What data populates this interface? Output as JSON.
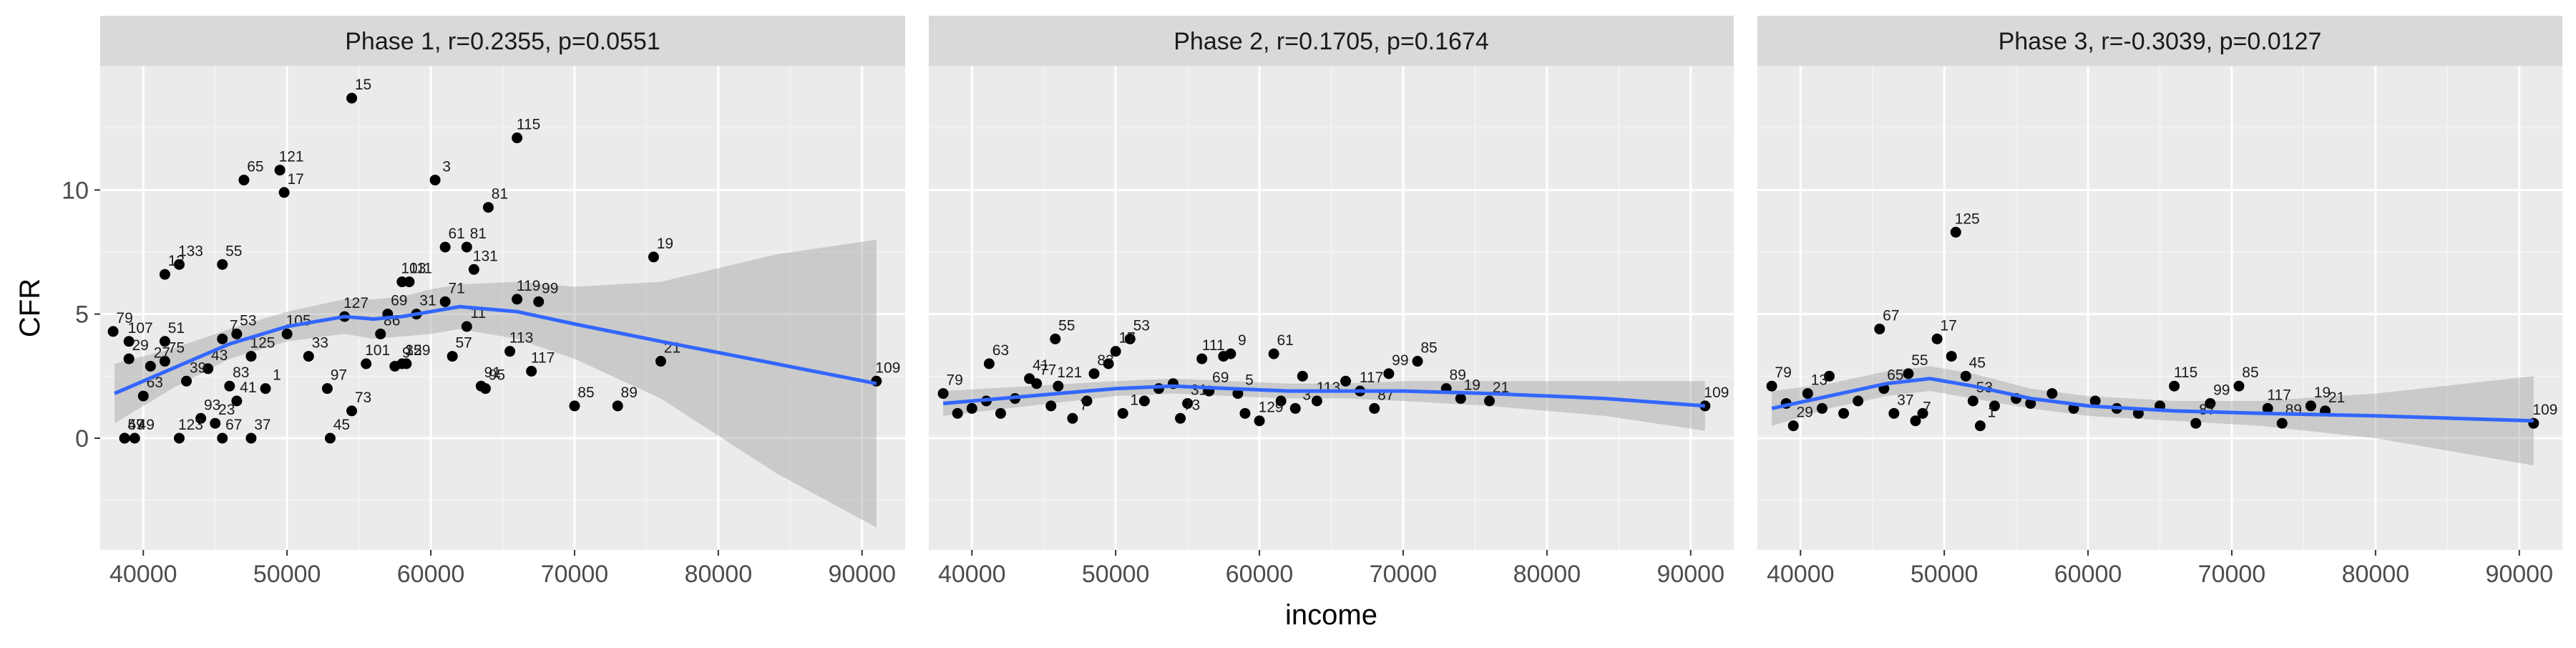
{
  "chart_data": {
    "type": "scatter",
    "xlabel": "income",
    "ylabel": "CFR",
    "xlim": [
      37000,
      93000
    ],
    "ylim": [
      -4.5,
      15
    ],
    "x_ticks": [
      40000,
      50000,
      60000,
      70000,
      80000,
      90000
    ],
    "x_tick_labels": [
      "40000",
      "50000",
      "60000",
      "70000",
      "80000",
      "90000"
    ],
    "y_ticks": [
      0,
      5,
      10
    ],
    "y_tick_labels": [
      "0",
      "5",
      "10"
    ],
    "grid": true,
    "smoother": "loess with confidence band",
    "colors": {
      "panel_bg": "#ebebeb",
      "strip_bg": "#d9d9d9",
      "grid_major": "#ffffff",
      "grid_minor": "#f5f5f5",
      "point": "#000000",
      "smooth_line": "#3366ff",
      "ribbon": "#999999"
    },
    "panels": [
      {
        "title": "Phase 1, r=0.2355, p=0.0551",
        "points": [
          {
            "x": 37900,
            "y": 4.3,
            "label": "79"
          },
          {
            "x": 39000,
            "y": 3.9,
            "label": "107"
          },
          {
            "x": 39000,
            "y": 3.2,
            "label": "29"
          },
          {
            "x": 41500,
            "y": 3.9,
            "label": "51"
          },
          {
            "x": 40500,
            "y": 2.9,
            "label": "27"
          },
          {
            "x": 41500,
            "y": 3.1,
            "label": "75"
          },
          {
            "x": 45500,
            "y": 4.0,
            "label": "7"
          },
          {
            "x": 46500,
            "y": 4.2,
            "label": "53"
          },
          {
            "x": 44500,
            "y": 2.8,
            "label": "43"
          },
          {
            "x": 47500,
            "y": 3.3,
            "label": "125"
          },
          {
            "x": 50000,
            "y": 4.2,
            "label": "105"
          },
          {
            "x": 51500,
            "y": 3.3,
            "label": "33"
          },
          {
            "x": 46000,
            "y": 2.1,
            "label": "83"
          },
          {
            "x": 48500,
            "y": 2.0,
            "label": "1"
          },
          {
            "x": 40000,
            "y": 1.7,
            "label": "63"
          },
          {
            "x": 43000,
            "y": 2.3,
            "label": "39"
          },
          {
            "x": 44000,
            "y": 0.8,
            "label": "93"
          },
          {
            "x": 45000,
            "y": 0.6,
            "label": "23"
          },
          {
            "x": 46500,
            "y": 1.5,
            "label": "41"
          },
          {
            "x": 38700,
            "y": 0.0,
            "label": "59"
          },
          {
            "x": 38700,
            "y": 0.0,
            "label": "47"
          },
          {
            "x": 39400,
            "y": 0.0,
            "label": "49"
          },
          {
            "x": 42500,
            "y": 0.0,
            "label": "123"
          },
          {
            "x": 45500,
            "y": 0.0,
            "label": "67"
          },
          {
            "x": 47500,
            "y": 0.0,
            "label": "37"
          },
          {
            "x": 53000,
            "y": 0.0,
            "label": "45"
          },
          {
            "x": 52800,
            "y": 2.0,
            "label": "97"
          },
          {
            "x": 54500,
            "y": 1.1,
            "label": "73"
          },
          {
            "x": 55500,
            "y": 3.0,
            "label": "101"
          },
          {
            "x": 57500,
            "y": 2.9,
            "label": "9"
          },
          {
            "x": 58000,
            "y": 3.0,
            "label": "35"
          },
          {
            "x": 58300,
            "y": 3.0,
            "label": "129"
          },
          {
            "x": 59000,
            "y": 5.0,
            "label": "31"
          },
          {
            "x": 56500,
            "y": 4.2,
            "label": "86"
          },
          {
            "x": 54000,
            "y": 4.9,
            "label": "127"
          },
          {
            "x": 57000,
            "y": 5.0,
            "label": "69"
          },
          {
            "x": 61000,
            "y": 5.5,
            "label": "71"
          },
          {
            "x": 62500,
            "y": 4.5,
            "label": "11"
          },
          {
            "x": 61500,
            "y": 3.3,
            "label": "57"
          },
          {
            "x": 63500,
            "y": 2.1,
            "label": "91"
          },
          {
            "x": 63800,
            "y": 2.0,
            "label": "95"
          },
          {
            "x": 66000,
            "y": 5.6,
            "label": "119"
          },
          {
            "x": 67500,
            "y": 5.5,
            "label": "99"
          },
          {
            "x": 65500,
            "y": 3.5,
            "label": "113"
          },
          {
            "x": 67000,
            "y": 2.7,
            "label": "117"
          },
          {
            "x": 70000,
            "y": 1.3,
            "label": "85"
          },
          {
            "x": 73000,
            "y": 1.3,
            "label": "89"
          },
          {
            "x": 76000,
            "y": 3.1,
            "label": "21"
          },
          {
            "x": 75500,
            "y": 7.3,
            "label": "19"
          },
          {
            "x": 91000,
            "y": 2.3,
            "label": "109"
          },
          {
            "x": 41500,
            "y": 6.6,
            "label": "13"
          },
          {
            "x": 42500,
            "y": 7.0,
            "label": "133"
          },
          {
            "x": 45500,
            "y": 7.0,
            "label": "55"
          },
          {
            "x": 47000,
            "y": 10.4,
            "label": "65"
          },
          {
            "x": 49500,
            "y": 10.8,
            "label": "121"
          },
          {
            "x": 49800,
            "y": 9.9,
            "label": "17"
          },
          {
            "x": 54500,
            "y": 13.7,
            "label": "15"
          },
          {
            "x": 58000,
            "y": 6.3,
            "label": "103"
          },
          {
            "x": 58500,
            "y": 6.3,
            "label": "111"
          },
          {
            "x": 60300,
            "y": 10.4,
            "label": "3"
          },
          {
            "x": 61000,
            "y": 7.7,
            "label": "61"
          },
          {
            "x": 63000,
            "y": 6.8,
            "label": "131"
          },
          {
            "x": 62500,
            "y": 7.7,
            "label": "81a"
          },
          {
            "x": 64000,
            "y": 9.3,
            "label": "81"
          },
          {
            "x": 66000,
            "y": 12.1,
            "label": "115"
          }
        ],
        "smooth": [
          {
            "x": 38000,
            "y": 1.8,
            "lo": 0.6,
            "hi": 3.0
          },
          {
            "x": 42000,
            "y": 2.8,
            "lo": 2.0,
            "hi": 3.6
          },
          {
            "x": 46000,
            "y": 3.8,
            "lo": 3.2,
            "hi": 4.4
          },
          {
            "x": 50000,
            "y": 4.5,
            "lo": 3.9,
            "hi": 5.1
          },
          {
            "x": 54000,
            "y": 4.9,
            "lo": 4.2,
            "hi": 5.6
          },
          {
            "x": 56000,
            "y": 4.8,
            "lo": 4.0,
            "hi": 5.6
          },
          {
            "x": 58000,
            "y": 4.9,
            "lo": 4.1,
            "hi": 5.7
          },
          {
            "x": 60000,
            "y": 5.1,
            "lo": 4.2,
            "hi": 6.0
          },
          {
            "x": 62000,
            "y": 5.3,
            "lo": 4.4,
            "hi": 6.2
          },
          {
            "x": 66000,
            "y": 5.1,
            "lo": 4.0,
            "hi": 6.3
          },
          {
            "x": 70000,
            "y": 4.6,
            "lo": 3.2,
            "hi": 6.1
          },
          {
            "x": 76000,
            "y": 3.9,
            "lo": 1.6,
            "hi": 6.3
          },
          {
            "x": 84000,
            "y": 3.0,
            "lo": -1.4,
            "hi": 7.4
          },
          {
            "x": 91000,
            "y": 2.2,
            "lo": -3.6,
            "hi": 8.0
          }
        ]
      },
      {
        "title": "Phase 2, r=0.1705, p=0.1674",
        "points": [
          {
            "x": 38000,
            "y": 1.8,
            "label": "79"
          },
          {
            "x": 39000,
            "y": 1.0,
            "label": ""
          },
          {
            "x": 40000,
            "y": 1.2,
            "label": ""
          },
          {
            "x": 41000,
            "y": 1.5,
            "label": ""
          },
          {
            "x": 41200,
            "y": 3.0,
            "label": "63"
          },
          {
            "x": 42000,
            "y": 1.0,
            "label": ""
          },
          {
            "x": 43000,
            "y": 1.6,
            "label": ""
          },
          {
            "x": 44000,
            "y": 2.4,
            "label": "41"
          },
          {
            "x": 44500,
            "y": 2.2,
            "label": "77"
          },
          {
            "x": 45500,
            "y": 1.3,
            "label": ""
          },
          {
            "x": 46000,
            "y": 2.1,
            "label": "121"
          },
          {
            "x": 45800,
            "y": 4.0,
            "label": "55"
          },
          {
            "x": 47000,
            "y": 0.8,
            "label": "7"
          },
          {
            "x": 48000,
            "y": 1.5,
            "label": ""
          },
          {
            "x": 48500,
            "y": 2.6,
            "label": "83"
          },
          {
            "x": 49500,
            "y": 3.0,
            "label": ""
          },
          {
            "x": 50000,
            "y": 3.5,
            "label": "17"
          },
          {
            "x": 51000,
            "y": 4.0,
            "label": "53"
          },
          {
            "x": 50500,
            "y": 1.0,
            "label": "1"
          },
          {
            "x": 52000,
            "y": 1.5,
            "label": ""
          },
          {
            "x": 53000,
            "y": 2.0,
            "label": ""
          },
          {
            "x": 54000,
            "y": 2.2,
            "label": ""
          },
          {
            "x": 54500,
            "y": 0.8,
            "label": "73"
          },
          {
            "x": 55000,
            "y": 1.4,
            "label": "31"
          },
          {
            "x": 56000,
            "y": 3.2,
            "label": "111"
          },
          {
            "x": 56500,
            "y": 1.9,
            "label": "69"
          },
          {
            "x": 57500,
            "y": 3.3,
            "label": ""
          },
          {
            "x": 58000,
            "y": 3.4,
            "label": "9"
          },
          {
            "x": 58500,
            "y": 1.8,
            "label": "5"
          },
          {
            "x": 59000,
            "y": 1.0,
            "label": ""
          },
          {
            "x": 60000,
            "y": 0.7,
            "label": "129"
          },
          {
            "x": 61000,
            "y": 3.4,
            "label": "61"
          },
          {
            "x": 61500,
            "y": 1.5,
            "label": ""
          },
          {
            "x": 62500,
            "y": 1.2,
            "label": "3"
          },
          {
            "x": 63000,
            "y": 2.5,
            "label": ""
          },
          {
            "x": 64000,
            "y": 1.5,
            "label": "113"
          },
          {
            "x": 66000,
            "y": 2.3,
            "label": ""
          },
          {
            "x": 67000,
            "y": 1.9,
            "label": "117"
          },
          {
            "x": 68000,
            "y": 1.2,
            "label": "87"
          },
          {
            "x": 69000,
            "y": 2.6,
            "label": "99"
          },
          {
            "x": 71000,
            "y": 3.1,
            "label": "85"
          },
          {
            "x": 73000,
            "y": 2.0,
            "label": "89"
          },
          {
            "x": 74000,
            "y": 1.6,
            "label": "19"
          },
          {
            "x": 76000,
            "y": 1.5,
            "label": "21"
          },
          {
            "x": 91000,
            "y": 1.3,
            "label": "109"
          }
        ],
        "smooth": [
          {
            "x": 38000,
            "y": 1.4,
            "lo": 0.9,
            "hi": 1.9
          },
          {
            "x": 44000,
            "y": 1.7,
            "lo": 1.3,
            "hi": 2.1
          },
          {
            "x": 50000,
            "y": 2.0,
            "lo": 1.7,
            "hi": 2.3
          },
          {
            "x": 54000,
            "y": 2.1,
            "lo": 1.8,
            "hi": 2.4
          },
          {
            "x": 58000,
            "y": 2.0,
            "lo": 1.7,
            "hi": 2.3
          },
          {
            "x": 62000,
            "y": 1.9,
            "lo": 1.6,
            "hi": 2.2
          },
          {
            "x": 66000,
            "y": 1.9,
            "lo": 1.6,
            "hi": 2.2
          },
          {
            "x": 70000,
            "y": 1.9,
            "lo": 1.5,
            "hi": 2.3
          },
          {
            "x": 76000,
            "y": 1.8,
            "lo": 1.3,
            "hi": 2.3
          },
          {
            "x": 84000,
            "y": 1.6,
            "lo": 0.9,
            "hi": 2.3
          },
          {
            "x": 91000,
            "y": 1.3,
            "lo": 0.3,
            "hi": 2.3
          }
        ]
      },
      {
        "title": "Phase 3, r=-0.3039, p=0.0127",
        "points": [
          {
            "x": 38000,
            "y": 2.1,
            "label": "79"
          },
          {
            "x": 39000,
            "y": 1.4,
            "label": ""
          },
          {
            "x": 39500,
            "y": 0.5,
            "label": "29"
          },
          {
            "x": 40500,
            "y": 1.8,
            "label": "13"
          },
          {
            "x": 41500,
            "y": 1.2,
            "label": ""
          },
          {
            "x": 42000,
            "y": 2.5,
            "label": ""
          },
          {
            "x": 43000,
            "y": 1.0,
            "label": ""
          },
          {
            "x": 44000,
            "y": 1.5,
            "label": ""
          },
          {
            "x": 45500,
            "y": 4.4,
            "label": "67"
          },
          {
            "x": 45800,
            "y": 2.0,
            "label": "65"
          },
          {
            "x": 46500,
            "y": 1.0,
            "label": "37"
          },
          {
            "x": 47500,
            "y": 2.6,
            "label": "55"
          },
          {
            "x": 48000,
            "y": 0.7,
            "label": "7"
          },
          {
            "x": 48500,
            "y": 1.0,
            "label": ""
          },
          {
            "x": 49500,
            "y": 4.0,
            "label": "17"
          },
          {
            "x": 50500,
            "y": 3.3,
            "label": ""
          },
          {
            "x": 50800,
            "y": 8.3,
            "label": "125"
          },
          {
            "x": 51500,
            "y": 2.5,
            "label": "45"
          },
          {
            "x": 52000,
            "y": 1.5,
            "label": "53"
          },
          {
            "x": 52500,
            "y": 0.5,
            "label": "1"
          },
          {
            "x": 53500,
            "y": 1.3,
            "label": ""
          },
          {
            "x": 55000,
            "y": 1.6,
            "label": ""
          },
          {
            "x": 56000,
            "y": 1.4,
            "label": ""
          },
          {
            "x": 57500,
            "y": 1.8,
            "label": ""
          },
          {
            "x": 59000,
            "y": 1.2,
            "label": ""
          },
          {
            "x": 60500,
            "y": 1.5,
            "label": ""
          },
          {
            "x": 62000,
            "y": 1.2,
            "label": ""
          },
          {
            "x": 63500,
            "y": 1.0,
            "label": ""
          },
          {
            "x": 65000,
            "y": 1.3,
            "label": ""
          },
          {
            "x": 66000,
            "y": 2.1,
            "label": "115"
          },
          {
            "x": 67500,
            "y": 0.6,
            "label": "87"
          },
          {
            "x": 68500,
            "y": 1.4,
            "label": "99"
          },
          {
            "x": 70500,
            "y": 2.1,
            "label": "85"
          },
          {
            "x": 72500,
            "y": 1.2,
            "label": "117"
          },
          {
            "x": 73500,
            "y": 0.6,
            "label": "89"
          },
          {
            "x": 75500,
            "y": 1.3,
            "label": "19"
          },
          {
            "x": 76500,
            "y": 1.1,
            "label": "21"
          },
          {
            "x": 91000,
            "y": 0.6,
            "label": "109"
          }
        ],
        "smooth": [
          {
            "x": 38000,
            "y": 1.2,
            "lo": 0.5,
            "hi": 1.9
          },
          {
            "x": 42000,
            "y": 1.7,
            "lo": 1.2,
            "hi": 2.2
          },
          {
            "x": 46000,
            "y": 2.2,
            "lo": 1.7,
            "hi": 2.7
          },
          {
            "x": 49000,
            "y": 2.4,
            "lo": 1.9,
            "hi": 2.9
          },
          {
            "x": 52000,
            "y": 2.1,
            "lo": 1.6,
            "hi": 2.6
          },
          {
            "x": 56000,
            "y": 1.6,
            "lo": 1.2,
            "hi": 2.0
          },
          {
            "x": 60000,
            "y": 1.3,
            "lo": 0.9,
            "hi": 1.7
          },
          {
            "x": 66000,
            "y": 1.1,
            "lo": 0.7,
            "hi": 1.5
          },
          {
            "x": 72000,
            "y": 1.0,
            "lo": 0.5,
            "hi": 1.5
          },
          {
            "x": 80000,
            "y": 0.9,
            "lo": 0.0,
            "hi": 1.8
          },
          {
            "x": 91000,
            "y": 0.7,
            "lo": -1.1,
            "hi": 2.5
          }
        ]
      }
    ]
  }
}
